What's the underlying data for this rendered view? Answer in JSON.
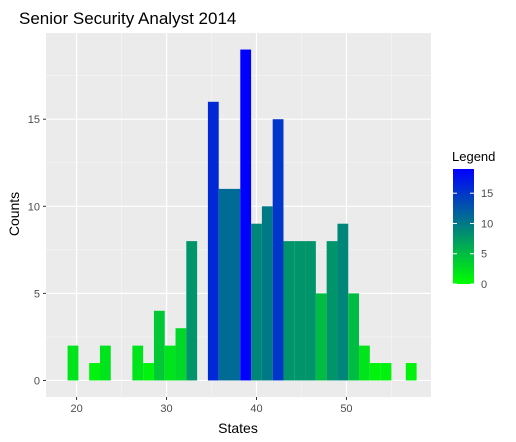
{
  "chart_data": {
    "type": "bar",
    "title": "Senior Security Analyst 2014",
    "xlabel": "States",
    "ylabel": "Counts",
    "xlim": [
      16.6,
      59.4
    ],
    "ylim": [
      -0.95,
      19.95
    ],
    "x_ticks": [
      20,
      30,
      40,
      50
    ],
    "y_ticks": [
      0,
      5,
      10,
      15
    ],
    "bin_width": 1.2,
    "bins": [
      {
        "x": 19.6,
        "count": 2
      },
      {
        "x": 22.0,
        "count": 1
      },
      {
        "x": 23.2,
        "count": 2
      },
      {
        "x": 26.8,
        "count": 2
      },
      {
        "x": 28.0,
        "count": 1
      },
      {
        "x": 29.2,
        "count": 4
      },
      {
        "x": 30.4,
        "count": 2
      },
      {
        "x": 31.6,
        "count": 3
      },
      {
        "x": 32.8,
        "count": 8
      },
      {
        "x": 35.2,
        "count": 16
      },
      {
        "x": 36.4,
        "count": 11
      },
      {
        "x": 37.6,
        "count": 11
      },
      {
        "x": 38.8,
        "count": 19
      },
      {
        "x": 40.0,
        "count": 9
      },
      {
        "x": 41.2,
        "count": 10
      },
      {
        "x": 42.4,
        "count": 15
      },
      {
        "x": 43.6,
        "count": 8
      },
      {
        "x": 44.8,
        "count": 8
      },
      {
        "x": 46.0,
        "count": 8
      },
      {
        "x": 47.2,
        "count": 5
      },
      {
        "x": 48.4,
        "count": 8
      },
      {
        "x": 49.6,
        "count": 9
      },
      {
        "x": 50.8,
        "count": 5
      },
      {
        "x": 52.0,
        "count": 2
      },
      {
        "x": 53.2,
        "count": 1
      },
      {
        "x": 54.4,
        "count": 1
      },
      {
        "x": 57.2,
        "count": 1
      }
    ],
    "color_scale": {
      "low": "#00ff00",
      "high": "#0000ff",
      "min": 0,
      "max": 19
    },
    "legend": {
      "title": "Legend",
      "placement": "right",
      "breaks": [
        0,
        5,
        10,
        15
      ]
    },
    "panel_background": "#ebebeb",
    "grid": true
  }
}
